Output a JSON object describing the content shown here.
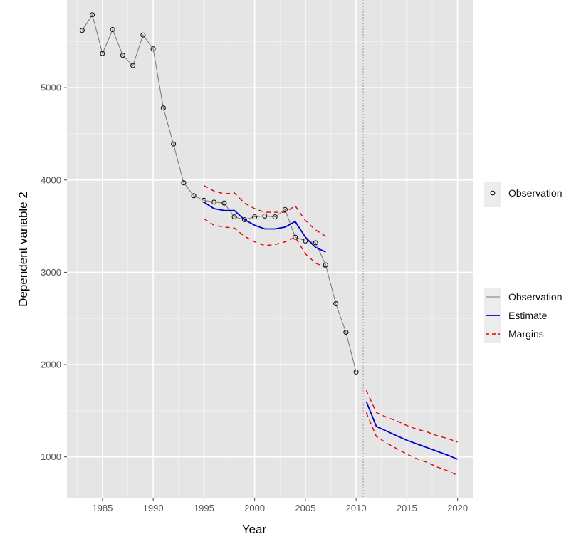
{
  "chart_data": {
    "type": "line",
    "title": "",
    "xlabel": "Year",
    "ylabel": "Dependent variable 2",
    "xlim": [
      1981.5,
      2021.5
    ],
    "ylim": [
      550,
      5950
    ],
    "x_ticks": [
      1985,
      1990,
      1995,
      2000,
      2005,
      2010,
      2015,
      2020
    ],
    "y_ticks": [
      1000,
      2000,
      3000,
      4000,
      5000
    ],
    "grid": true,
    "vline_x": 2010.7,
    "points_series": {
      "name": "Observation",
      "x": [
        1983,
        1984,
        1985,
        1986,
        1987,
        1988,
        1989,
        1990,
        1991,
        1992,
        1993,
        1994,
        1995,
        1996,
        1997,
        1998,
        1999,
        2000,
        2001,
        2002,
        2003,
        2004,
        2005,
        2006,
        2007,
        2008,
        2009,
        2010
      ],
      "y": [
        5620,
        5790,
        5370,
        5630,
        5350,
        5240,
        5570,
        5420,
        4780,
        4390,
        3970,
        3830,
        3780,
        3760,
        3750,
        3600,
        3570,
        3600,
        3610,
        3600,
        3680,
        3380,
        3340,
        3320,
        3080,
        2660,
        2350,
        1920
      ]
    },
    "series": [
      {
        "name": "Observation",
        "color": "#777777",
        "style": "solid",
        "x": [
          1983,
          1984,
          1985,
          1986,
          1987,
          1988,
          1989,
          1990,
          1991,
          1992,
          1993,
          1994,
          1995,
          1996,
          1997,
          1998,
          1999,
          2000,
          2001,
          2002,
          2003,
          2004,
          2005,
          2006,
          2007,
          2008,
          2009,
          2010
        ],
        "y": [
          5620,
          5790,
          5370,
          5630,
          5350,
          5240,
          5570,
          5420,
          4780,
          4390,
          3970,
          3830,
          3780,
          3760,
          3750,
          3600,
          3570,
          3600,
          3610,
          3600,
          3680,
          3380,
          3340,
          3320,
          3080,
          2660,
          2350,
          1920
        ]
      },
      {
        "name": "Estimate",
        "color": "#0000cc",
        "style": "solid",
        "segments": [
          {
            "x": [
              1995,
              1996,
              1997,
              1998,
              1999,
              2000,
              2001,
              2002,
              2003,
              2004,
              2005,
              2006,
              2007
            ],
            "y": [
              3760,
              3690,
              3670,
              3670,
              3570,
              3510,
              3470,
              3470,
              3490,
              3550,
              3380,
              3270,
              3220
            ]
          },
          {
            "x": [
              2011,
              2012,
              2013,
              2014,
              2015,
              2016,
              2017,
              2018,
              2019,
              2020
            ],
            "y": [
              1600,
              1330,
              1280,
              1230,
              1180,
              1140,
              1100,
              1060,
              1020,
              975
            ]
          }
        ]
      },
      {
        "name": "Margins",
        "color": "#e00000",
        "style": "dashed",
        "segments": [
          {
            "x": [
              1995,
              1996,
              1997,
              1998,
              1999,
              2000,
              2001,
              2002,
              2003,
              2004,
              2005,
              2006,
              2007
            ],
            "y": [
              3940,
              3880,
              3850,
              3860,
              3750,
              3690,
              3650,
              3650,
              3650,
              3720,
              3560,
              3460,
              3390
            ]
          },
          {
            "x": [
              1995,
              1996,
              1997,
              1998,
              1999,
              2000,
              2001,
              2002,
              2003,
              2004,
              2005,
              2006,
              2007
            ],
            "y": [
              3580,
              3510,
              3490,
              3480,
              3390,
              3330,
              3290,
              3300,
              3330,
              3380,
              3200,
              3100,
              3050
            ]
          },
          {
            "x": [
              2011,
              2012,
              2013,
              2014,
              2015,
              2016,
              2017,
              2018,
              2019,
              2020
            ],
            "y": [
              1720,
              1480,
              1430,
              1390,
              1340,
              1300,
              1270,
              1230,
              1200,
              1160
            ]
          },
          {
            "x": [
              2011,
              2012,
              2013,
              2014,
              2015,
              2016,
              2017,
              2018,
              2019,
              2020
            ],
            "y": [
              1480,
              1220,
              1150,
              1090,
              1030,
              980,
              940,
              890,
              850,
              800
            ]
          }
        ]
      }
    ]
  },
  "legend_points": {
    "items": [
      {
        "label": "Observation"
      }
    ]
  },
  "legend_lines": {
    "items": [
      {
        "label": "Observation",
        "color": "#777777",
        "style": "solid"
      },
      {
        "label": "Estimate",
        "color": "#0000cc",
        "style": "solid"
      },
      {
        "label": "Margins",
        "color": "#e00000",
        "style": "dashed"
      }
    ]
  }
}
